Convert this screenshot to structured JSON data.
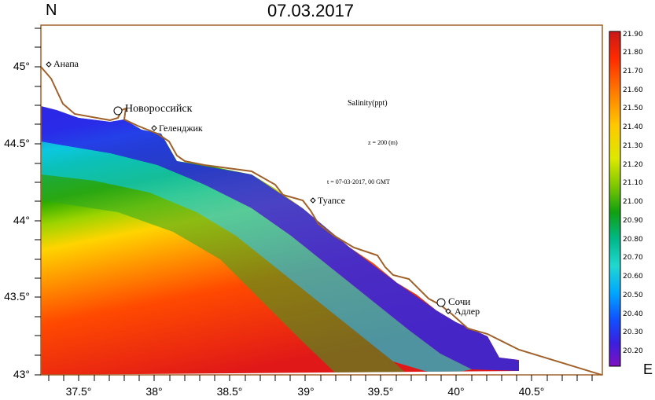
{
  "header": {
    "title": "07.03.2017"
  },
  "compass": {
    "north": "N",
    "east": "E"
  },
  "axes": {
    "lat_ticks": [
      "45°",
      "44.5°",
      "44°",
      "43.5°",
      "43°"
    ],
    "lon_ticks": [
      "37.5°",
      "38°",
      "38.5°",
      "39°",
      "39.5°",
      "40°",
      "40.5°"
    ]
  },
  "annotations": {
    "variable": "Salinity(ppt)",
    "depth": "z = 200 (m)",
    "time": "t = 07-03-2017,  00 GMT"
  },
  "cities": [
    {
      "name": "Анапа",
      "lon": 37.31,
      "lat": 44.99
    },
    {
      "name": "Новороссийск",
      "lon": 37.77,
      "lat": 44.72
    },
    {
      "name": "Геленджик",
      "lon": 38.01,
      "lat": 44.58
    },
    {
      "name": "Туапсе",
      "lon": 39.05,
      "lat": 44.12
    },
    {
      "name": "Сочи",
      "lon": 39.91,
      "lat": 43.47
    },
    {
      "name": "Адлер",
      "lon": 39.95,
      "lat": 43.42
    }
  ],
  "colorbar": {
    "ticks": [
      "21.90",
      "21.80",
      "21.70",
      "21.60",
      "21.50",
      "21.40",
      "21.30",
      "21.20",
      "21.10",
      "21.00",
      "20.90",
      "20.80",
      "20.70",
      "20.60",
      "20.50",
      "20.40",
      "20.30",
      "20.20"
    ],
    "colors": [
      "#d42020",
      "#ff2a00",
      "#ff6600",
      "#ffa500",
      "#ffd400",
      "#e6e600",
      "#b8e000",
      "#7ecb00",
      "#20a800",
      "#00a030",
      "#00c080",
      "#20d8c8",
      "#00c8f0",
      "#00a0ff",
      "#0060ff",
      "#2a20e0",
      "#5a10c8",
      "#7a10c0"
    ]
  },
  "colors": {
    "coast": "#a0602a",
    "blue_strip": "#3320dd",
    "sea_warm": "#ff2000"
  }
}
